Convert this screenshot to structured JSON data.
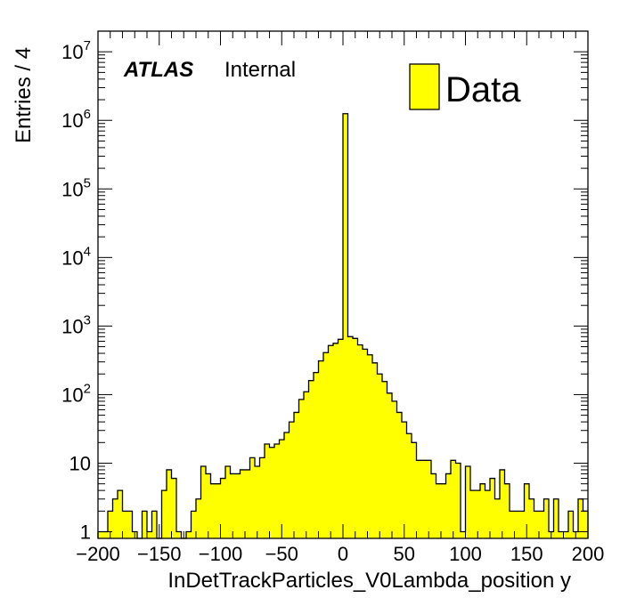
{
  "chart_data": {
    "type": "histogram",
    "xlabel": "InDetTrackParticles_V0Lambda_position y",
    "ylabel": "Entries / 4",
    "experiment": "ATLAS",
    "status": "Internal",
    "xlim": [
      -200,
      200
    ],
    "ylim": [
      0.8,
      20000000
    ],
    "y_scale": "log",
    "bin_width": 4,
    "grid": false,
    "legend": {
      "placement": "top-right",
      "entries": [
        {
          "name": "Data",
          "color": "#ffff00"
        }
      ]
    },
    "fill_color": "#ffff00",
    "line_color": "#000000",
    "x_tick_labels": [
      "−200",
      "−150",
      "−100",
      "−50",
      "0",
      "50",
      "100",
      "150",
      "200"
    ],
    "x_ticks": [
      -200,
      -150,
      -100,
      -50,
      0,
      50,
      100,
      150,
      200
    ],
    "y_tick_labels": [
      {
        "value": 1,
        "base": "1",
        "exp": ""
      },
      {
        "value": 10,
        "base": "10",
        "exp": ""
      },
      {
        "value": 100,
        "base": "10",
        "exp": "2"
      },
      {
        "value": 1000,
        "base": "10",
        "exp": "3"
      },
      {
        "value": 10000,
        "base": "10",
        "exp": "4"
      },
      {
        "value": 100000,
        "base": "10",
        "exp": "5"
      },
      {
        "value": 1000000,
        "base": "10",
        "exp": "6"
      },
      {
        "value": 10000000,
        "base": "10",
        "exp": "7"
      }
    ],
    "bins": [
      {
        "x": -200,
        "y": 1
      },
      {
        "x": -196,
        "y": 1
      },
      {
        "x": -192,
        "y": 2
      },
      {
        "x": -188,
        "y": 3
      },
      {
        "x": -184,
        "y": 4
      },
      {
        "x": -180,
        "y": 2
      },
      {
        "x": -176,
        "y": 2
      },
      {
        "x": -172,
        "y": 1
      },
      {
        "x": -168,
        "y": 0
      },
      {
        "x": -164,
        "y": 2
      },
      {
        "x": -160,
        "y": 1
      },
      {
        "x": -156,
        "y": 2
      },
      {
        "x": -152,
        "y": 0
      },
      {
        "x": -148,
        "y": 4
      },
      {
        "x": -144,
        "y": 8
      },
      {
        "x": -140,
        "y": 6
      },
      {
        "x": -136,
        "y": 1
      },
      {
        "x": -132,
        "y": 0
      },
      {
        "x": -128,
        "y": 1
      },
      {
        "x": -124,
        "y": 2
      },
      {
        "x": -120,
        "y": 3
      },
      {
        "x": -116,
        "y": 9
      },
      {
        "x": -112,
        "y": 7
      },
      {
        "x": -108,
        "y": 5
      },
      {
        "x": -104,
        "y": 5
      },
      {
        "x": -100,
        "y": 6
      },
      {
        "x": -96,
        "y": 9
      },
      {
        "x": -92,
        "y": 7
      },
      {
        "x": -88,
        "y": 7
      },
      {
        "x": -84,
        "y": 8
      },
      {
        "x": -80,
        "y": 8
      },
      {
        "x": -76,
        "y": 12
      },
      {
        "x": -72,
        "y": 9
      },
      {
        "x": -68,
        "y": 12
      },
      {
        "x": -64,
        "y": 19
      },
      {
        "x": -60,
        "y": 17
      },
      {
        "x": -56,
        "y": 19
      },
      {
        "x": -52,
        "y": 22
      },
      {
        "x": -48,
        "y": 28
      },
      {
        "x": -44,
        "y": 40
      },
      {
        "x": -40,
        "y": 55
      },
      {
        "x": -36,
        "y": 85
      },
      {
        "x": -32,
        "y": 110
      },
      {
        "x": -28,
        "y": 160
      },
      {
        "x": -24,
        "y": 210
      },
      {
        "x": -20,
        "y": 310
      },
      {
        "x": -16,
        "y": 410
      },
      {
        "x": -12,
        "y": 520
      },
      {
        "x": -8,
        "y": 560
      },
      {
        "x": -4,
        "y": 640
      },
      {
        "x": 0,
        "y": 1250000
      },
      {
        "x": 4,
        "y": 700
      },
      {
        "x": 8,
        "y": 660
      },
      {
        "x": 12,
        "y": 530
      },
      {
        "x": 16,
        "y": 460
      },
      {
        "x": 20,
        "y": 380
      },
      {
        "x": 24,
        "y": 290
      },
      {
        "x": 28,
        "y": 200
      },
      {
        "x": 32,
        "y": 155
      },
      {
        "x": 36,
        "y": 105
      },
      {
        "x": 40,
        "y": 80
      },
      {
        "x": 44,
        "y": 55
      },
      {
        "x": 48,
        "y": 40
      },
      {
        "x": 52,
        "y": 27
      },
      {
        "x": 56,
        "y": 20
      },
      {
        "x": 60,
        "y": 11
      },
      {
        "x": 64,
        "y": 11
      },
      {
        "x": 68,
        "y": 11
      },
      {
        "x": 72,
        "y": 7
      },
      {
        "x": 76,
        "y": 5
      },
      {
        "x": 80,
        "y": 5
      },
      {
        "x": 84,
        "y": 7
      },
      {
        "x": 88,
        "y": 11
      },
      {
        "x": 92,
        "y": 10
      },
      {
        "x": 96,
        "y": 1
      },
      {
        "x": 100,
        "y": 9
      },
      {
        "x": 104,
        "y": 4
      },
      {
        "x": 108,
        "y": 4
      },
      {
        "x": 112,
        "y": 5
      },
      {
        "x": 116,
        "y": 4
      },
      {
        "x": 120,
        "y": 6
      },
      {
        "x": 124,
        "y": 3
      },
      {
        "x": 128,
        "y": 8
      },
      {
        "x": 132,
        "y": 5
      },
      {
        "x": 136,
        "y": 2
      },
      {
        "x": 140,
        "y": 2
      },
      {
        "x": 144,
        "y": 2
      },
      {
        "x": 148,
        "y": 5
      },
      {
        "x": 152,
        "y": 3
      },
      {
        "x": 156,
        "y": 2
      },
      {
        "x": 160,
        "y": 2
      },
      {
        "x": 164,
        "y": 3
      },
      {
        "x": 168,
        "y": 1
      },
      {
        "x": 172,
        "y": 3
      },
      {
        "x": 176,
        "y": 1
      },
      {
        "x": 180,
        "y": 1
      },
      {
        "x": 184,
        "y": 2
      },
      {
        "x": 188,
        "y": 1
      },
      {
        "x": 192,
        "y": 3
      },
      {
        "x": 196,
        "y": 2
      }
    ]
  }
}
